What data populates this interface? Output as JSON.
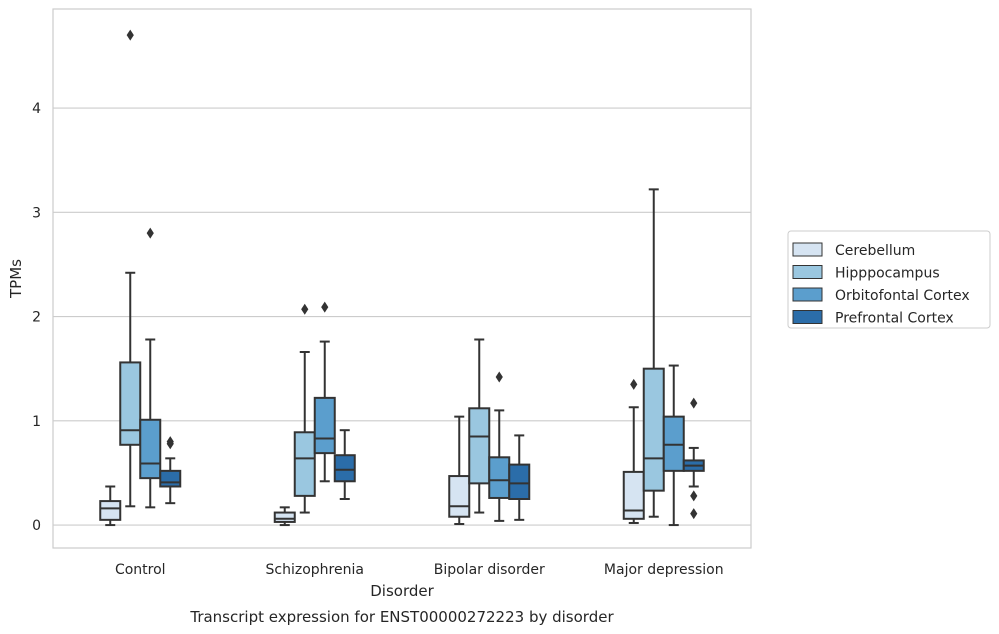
{
  "chart_data": {
    "type": "box",
    "caption": "Transcript expression for ENST00000272223 by disorder",
    "xlabel": "Disorder",
    "ylabel": "TPMs",
    "ylim": [
      -0.22,
      4.95
    ],
    "yticks": [
      0,
      1,
      2,
      3,
      4
    ],
    "grid": "horizontal",
    "legend_position": "right",
    "categories": [
      "Control",
      "Schizophrenia",
      "Bipolar disorder",
      "Major depression"
    ],
    "series": [
      {
        "name": "Cerebellum",
        "color": "#d6e4f2",
        "boxes": [
          {
            "min": 0.0,
            "q1": 0.05,
            "median": 0.16,
            "q3": 0.23,
            "max": 0.37,
            "outliers": []
          },
          {
            "min": 0.0,
            "q1": 0.03,
            "median": 0.06,
            "q3": 0.12,
            "max": 0.17,
            "outliers": []
          },
          {
            "min": 0.01,
            "q1": 0.08,
            "median": 0.18,
            "q3": 0.47,
            "max": 1.04,
            "outliers": []
          },
          {
            "min": 0.02,
            "q1": 0.06,
            "median": 0.14,
            "q3": 0.51,
            "max": 1.13,
            "outliers": [
              1.35
            ]
          }
        ]
      },
      {
        "name": "Hipppocampus",
        "color": "#9ac7e0",
        "boxes": [
          {
            "min": 0.18,
            "q1": 0.77,
            "median": 0.91,
            "q3": 1.56,
            "max": 2.42,
            "outliers": [
              4.7
            ]
          },
          {
            "min": 0.12,
            "q1": 0.28,
            "median": 0.64,
            "q3": 0.89,
            "max": 1.66,
            "outliers": [
              2.07
            ]
          },
          {
            "min": 0.12,
            "q1": 0.4,
            "median": 0.85,
            "q3": 1.12,
            "max": 1.78,
            "outliers": []
          },
          {
            "min": 0.08,
            "q1": 0.33,
            "median": 0.64,
            "q3": 1.5,
            "max": 3.22,
            "outliers": []
          }
        ]
      },
      {
        "name": "Orbitofontal Cortex",
        "color": "#5b9ecd",
        "boxes": [
          {
            "min": 0.17,
            "q1": 0.45,
            "median": 0.59,
            "q3": 1.01,
            "max": 1.78,
            "outliers": [
              2.8
            ]
          },
          {
            "min": 0.42,
            "q1": 0.69,
            "median": 0.83,
            "q3": 1.22,
            "max": 1.76,
            "outliers": [
              2.09
            ]
          },
          {
            "min": 0.04,
            "q1": 0.26,
            "median": 0.43,
            "q3": 0.65,
            "max": 1.1,
            "outliers": [
              1.42
            ]
          },
          {
            "min": 0.0,
            "q1": 0.52,
            "median": 0.77,
            "q3": 1.04,
            "max": 1.53,
            "outliers": []
          }
        ]
      },
      {
        "name": "Prefrontal Cortex",
        "color": "#2b6da9",
        "boxes": [
          {
            "min": 0.21,
            "q1": 0.37,
            "median": 0.41,
            "q3": 0.52,
            "max": 0.64,
            "outliers": [
              0.8,
              0.78
            ]
          },
          {
            "min": 0.25,
            "q1": 0.42,
            "median": 0.53,
            "q3": 0.67,
            "max": 0.91,
            "outliers": []
          },
          {
            "min": 0.05,
            "q1": 0.25,
            "median": 0.4,
            "q3": 0.58,
            "max": 0.86,
            "outliers": []
          },
          {
            "min": 0.37,
            "q1": 0.52,
            "median": 0.57,
            "q3": 0.62,
            "max": 0.74,
            "outliers": [
              1.17,
              0.28,
              0.11
            ]
          }
        ]
      }
    ]
  }
}
